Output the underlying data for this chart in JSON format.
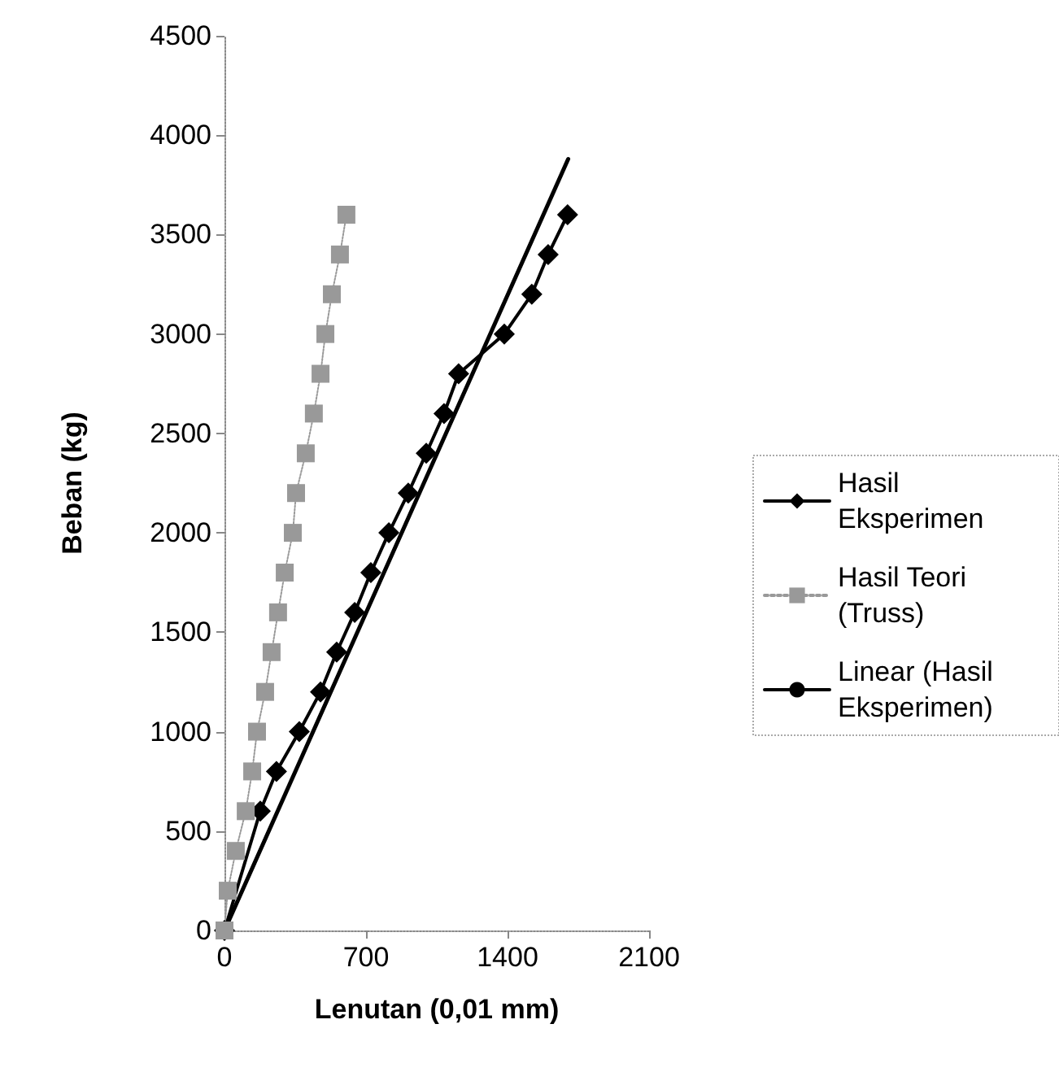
{
  "chart_data": {
    "type": "line",
    "xlabel": "Lenutan (0,01 mm)",
    "ylabel": "Beban (kg)",
    "xlim": [
      0,
      2100
    ],
    "xticks": [
      0,
      700,
      1400,
      2100
    ],
    "ylim": [
      0,
      4500
    ],
    "yticks": [
      0,
      500,
      1000,
      1500,
      2000,
      2500,
      3000,
      3500,
      4000,
      4500
    ],
    "grid": false,
    "legend": "right",
    "series": [
      {
        "name": "Hasil Eksperimen",
        "color": "#000000",
        "marker": "diamond",
        "line_style": "solid",
        "x": [
          0,
          177,
          257,
          370,
          475,
          555,
          644,
          724,
          813,
          909,
          998,
          1086,
          1158,
          1384,
          1520,
          1601,
          1697
        ],
        "values": [
          0,
          600,
          800,
          1000,
          1200,
          1400,
          1600,
          1800,
          2000,
          2200,
          2400,
          2600,
          2800,
          3000,
          3200,
          3400,
          3600
        ]
      },
      {
        "name": "Hasil Teori (Truss)",
        "color": "#999999",
        "marker": "square",
        "line_style": "dotted",
        "x": [
          0,
          16,
          56,
          105,
          137,
          161,
          201,
          233,
          265,
          298,
          338,
          354,
          402,
          442,
          475,
          499,
          531,
          571,
          603
        ],
        "values": [
          0,
          200,
          400,
          600,
          800,
          1000,
          1200,
          1400,
          1600,
          1800,
          2000,
          2200,
          2400,
          2600,
          2800,
          3000,
          3200,
          3400,
          3600
        ]
      },
      {
        "name": "Linear (Hasil Eksperimen)",
        "color": "#000000",
        "marker": "none",
        "line_style": "solid",
        "x": [
          0,
          1700
        ],
        "values": [
          0,
          3880
        ]
      }
    ]
  }
}
